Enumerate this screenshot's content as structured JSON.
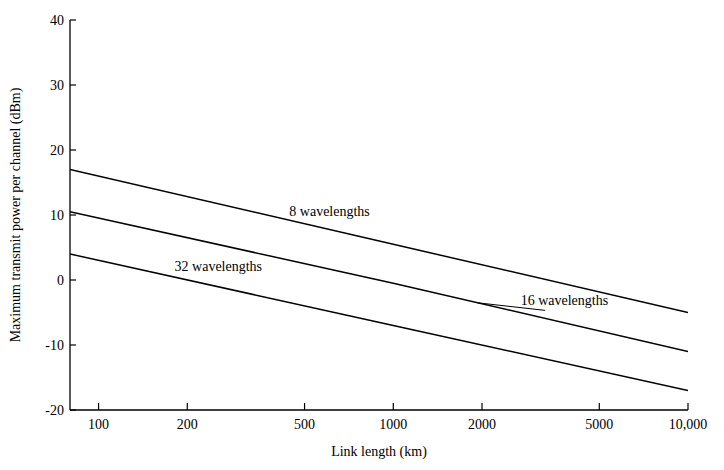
{
  "chart_data": {
    "type": "line",
    "x_label": "Link length (km)",
    "y_label": "Maximum transmit power per channel (dBm)",
    "log": "x",
    "grid": false,
    "x": [
      80,
      1000,
      10000
    ],
    "xlim": [
      80,
      10000
    ],
    "xticks": [
      100,
      200,
      500,
      1000,
      2000,
      5000,
      {
        "value": 10000,
        "label": "10,000"
      }
    ],
    "ylim": [
      -20,
      40
    ],
    "yticks": [
      -20,
      -10,
      0,
      10,
      20,
      30,
      40
    ],
    "series": [
      {
        "name": "8 wavelengths",
        "color": "#000000",
        "values": [
          17,
          5.5,
          -5
        ]
      },
      {
        "name": "16 wavelengths",
        "color": "#000000",
        "values": [
          10.5,
          -0.5,
          -11
        ]
      },
      {
        "name": "32 wavelengths",
        "color": "#000000",
        "values": [
          4,
          -7,
          -17
        ]
      }
    ]
  }
}
